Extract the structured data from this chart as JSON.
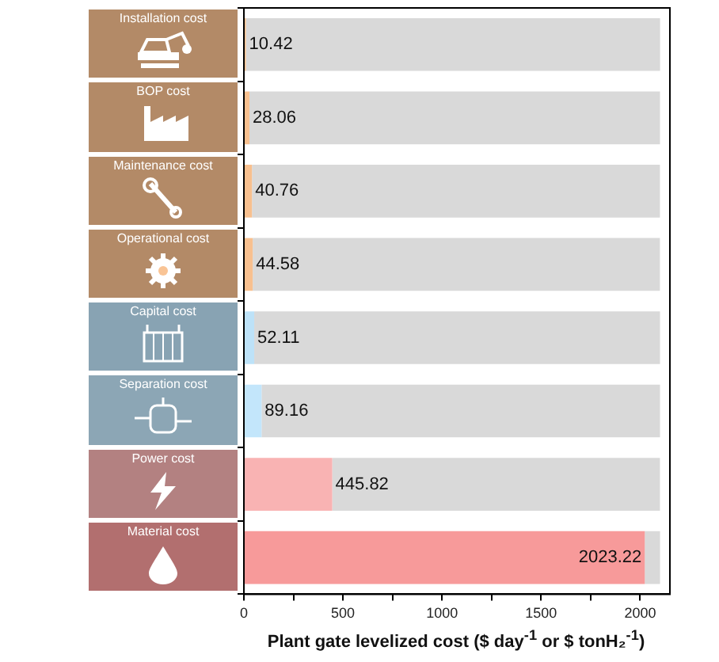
{
  "chart_data": {
    "type": "bar",
    "orientation": "horizontal",
    "stacked": true,
    "xlabel": "Plant gate levelized cost ($ day$^{-1}$ or $ tonH₂$^{-1}$)",
    "categories": [
      "Installation cost",
      "BOP cost",
      "Maintenance cost",
      "Operational cost",
      "Capital cost",
      "Separation cost",
      "Power cost",
      "Material cost"
    ],
    "series": [
      {
        "colors": [
          "#f8c08f",
          "#f8c08f",
          "#f8c08f",
          "#f8c08f",
          "#bde2f8",
          "#c3e6fb",
          "#f9b3b3",
          "#f79a9a"
        ],
        "values": [
          10.42,
          28.06,
          40.76,
          44.58,
          52.11,
          89.16,
          445.82,
          2023.22
        ],
        "data_labels": true
      },
      {
        "color": "#d9d9d9",
        "values": [
          2090,
          2072,
          2059,
          2055,
          2048,
          2011,
          1654,
          77
        ]
      }
    ],
    "xlim": [
      0,
      2150
    ],
    "xticks": [
      0,
      {
        "value": 250,
        "label": null
      },
      500,
      {
        "value": 750,
        "label": null
      },
      1000,
      {
        "value": 1250,
        "label": null
      },
      1500,
      {
        "value": 1750,
        "label": null
      },
      2000
    ],
    "grid": false,
    "legend": false
  }
}
